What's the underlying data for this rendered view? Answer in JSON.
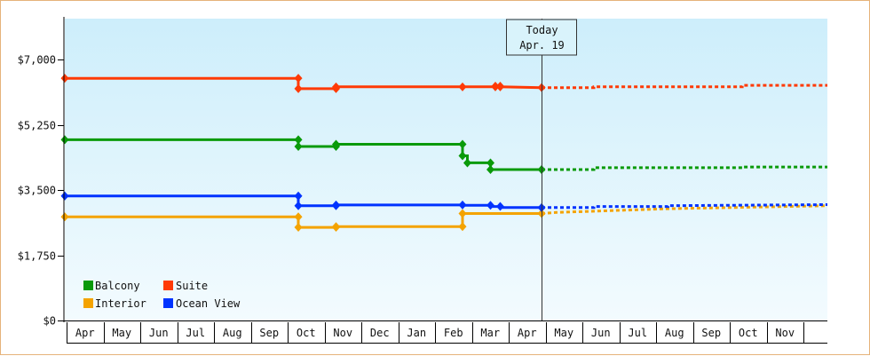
{
  "chart_data": {
    "type": "line",
    "title": "",
    "xlabel": "",
    "ylabel": "",
    "ylim": [
      0,
      8100
    ],
    "y_ticks": [
      {
        "value": 0,
        "label": "$0"
      },
      {
        "value": 1750,
        "label": "$1,750"
      },
      {
        "value": 3500,
        "label": "$3,500"
      },
      {
        "value": 5250,
        "label": "$5,250"
      },
      {
        "value": 7000,
        "label": "$7,000"
      }
    ],
    "x_range": [
      "2018-03-23",
      "2019-12-10"
    ],
    "x_ticks": [
      "Apr",
      "May",
      "Jun",
      "Jul",
      "Aug",
      "Sep",
      "Oct",
      "Nov",
      "Dec",
      "Jan",
      "Feb",
      "Mar",
      "Apr",
      "May",
      "Jun",
      "Jul",
      "Aug",
      "Sep",
      "Oct",
      "Nov"
    ],
    "today": {
      "line1": "Today",
      "line2": "Apr. 19",
      "date": "2019-04-19"
    },
    "legend": {
      "placement": "bottom-left"
    },
    "grid": false,
    "step_lines": true,
    "series": [
      {
        "name": "Balcony",
        "color": "#0a9a0a",
        "points": [
          [
            "2018-03-23",
            4850
          ],
          [
            "2018-10-01",
            4850
          ],
          [
            "2018-10-01",
            4670
          ],
          [
            "2018-11-01",
            4670
          ],
          [
            "2018-11-01",
            4730
          ],
          [
            "2019-02-13",
            4730
          ],
          [
            "2019-02-13",
            4420
          ],
          [
            "2019-02-17",
            4420
          ],
          [
            "2019-02-17",
            4230
          ],
          [
            "2019-03-08",
            4230
          ],
          [
            "2019-03-08",
            4050
          ],
          [
            "2019-04-19",
            4050
          ]
        ],
        "markers": [
          [
            "2018-03-23",
            4850
          ],
          [
            "2018-10-01",
            4850
          ],
          [
            "2018-10-01",
            4670
          ],
          [
            "2018-11-01",
            4670
          ],
          [
            "2018-11-01",
            4730
          ],
          [
            "2019-02-13",
            4730
          ],
          [
            "2019-02-13",
            4420
          ],
          [
            "2019-02-17",
            4230
          ],
          [
            "2019-03-08",
            4230
          ],
          [
            "2019-03-08",
            4050
          ],
          [
            "2019-04-19",
            4050
          ]
        ],
        "forecast": [
          [
            "2019-04-19",
            4050
          ],
          [
            "2019-06-01",
            4050
          ],
          [
            "2019-06-01",
            4100
          ],
          [
            "2019-10-01",
            4100
          ],
          [
            "2019-10-01",
            4120
          ],
          [
            "2019-12-10",
            4120
          ]
        ]
      },
      {
        "name": "Suite",
        "color": "#ff3a06",
        "points": [
          [
            "2018-03-23",
            6500
          ],
          [
            "2018-10-01",
            6500
          ],
          [
            "2018-10-01",
            6220
          ],
          [
            "2018-11-01",
            6220
          ],
          [
            "2018-11-01",
            6270
          ],
          [
            "2019-03-12",
            6270
          ],
          [
            "2019-03-12",
            6290
          ],
          [
            "2019-03-16",
            6290
          ],
          [
            "2019-03-16",
            6270
          ],
          [
            "2019-04-19",
            6250
          ]
        ],
        "markers": [
          [
            "2018-03-23",
            6500
          ],
          [
            "2018-10-01",
            6500
          ],
          [
            "2018-10-01",
            6220
          ],
          [
            "2018-11-01",
            6220
          ],
          [
            "2018-11-01",
            6270
          ],
          [
            "2019-02-13",
            6270
          ],
          [
            "2019-03-12",
            6290
          ],
          [
            "2019-03-12",
            6270
          ],
          [
            "2019-03-16",
            6290
          ],
          [
            "2019-03-16",
            6270
          ],
          [
            "2019-04-19",
            6250
          ]
        ],
        "forecast": [
          [
            "2019-04-19",
            6250
          ],
          [
            "2019-06-01",
            6250
          ],
          [
            "2019-06-01",
            6270
          ],
          [
            "2019-10-01",
            6270
          ],
          [
            "2019-10-01",
            6310
          ],
          [
            "2019-12-10",
            6310
          ]
        ]
      },
      {
        "name": "Interior",
        "color": "#f4a300",
        "points": [
          [
            "2018-03-23",
            2780
          ],
          [
            "2018-10-01",
            2780
          ],
          [
            "2018-10-01",
            2500
          ],
          [
            "2018-11-01",
            2500
          ],
          [
            "2018-11-01",
            2520
          ],
          [
            "2019-02-13",
            2520
          ],
          [
            "2019-02-13",
            2870
          ],
          [
            "2019-04-19",
            2870
          ]
        ],
        "markers": [
          [
            "2018-03-23",
            2780
          ],
          [
            "2018-10-01",
            2780
          ],
          [
            "2018-10-01",
            2500
          ],
          [
            "2018-11-01",
            2500
          ],
          [
            "2018-11-01",
            2520
          ],
          [
            "2019-02-13",
            2520
          ],
          [
            "2019-02-13",
            2870
          ],
          [
            "2019-04-19",
            2870
          ]
        ],
        "forecast": [
          [
            "2019-04-19",
            2870
          ],
          [
            "2019-05-01",
            2900
          ],
          [
            "2019-08-01",
            3000
          ],
          [
            "2019-12-10",
            3080
          ]
        ]
      },
      {
        "name": "Ocean View",
        "color": "#0033ff",
        "points": [
          [
            "2018-03-23",
            3340
          ],
          [
            "2018-10-01",
            3340
          ],
          [
            "2018-10-01",
            3080
          ],
          [
            "2018-11-01",
            3080
          ],
          [
            "2018-11-01",
            3100
          ],
          [
            "2019-02-13",
            3100
          ],
          [
            "2019-02-13",
            3090
          ],
          [
            "2019-03-08",
            3090
          ],
          [
            "2019-03-08",
            3060
          ],
          [
            "2019-03-16",
            3060
          ],
          [
            "2019-03-16",
            3030
          ],
          [
            "2019-04-19",
            3030
          ]
        ],
        "markers": [
          [
            "2018-03-23",
            3340
          ],
          [
            "2018-10-01",
            3340
          ],
          [
            "2018-10-01",
            3080
          ],
          [
            "2018-11-01",
            3080
          ],
          [
            "2018-11-01",
            3100
          ],
          [
            "2019-02-13",
            3100
          ],
          [
            "2019-03-08",
            3090
          ],
          [
            "2019-03-16",
            3060
          ],
          [
            "2019-04-19",
            3030
          ]
        ],
        "forecast": [
          [
            "2019-04-19",
            3030
          ],
          [
            "2019-06-01",
            3030
          ],
          [
            "2019-06-01",
            3060
          ],
          [
            "2019-08-01",
            3060
          ],
          [
            "2019-08-01",
            3080
          ],
          [
            "2019-12-10",
            3110
          ]
        ]
      }
    ]
  }
}
